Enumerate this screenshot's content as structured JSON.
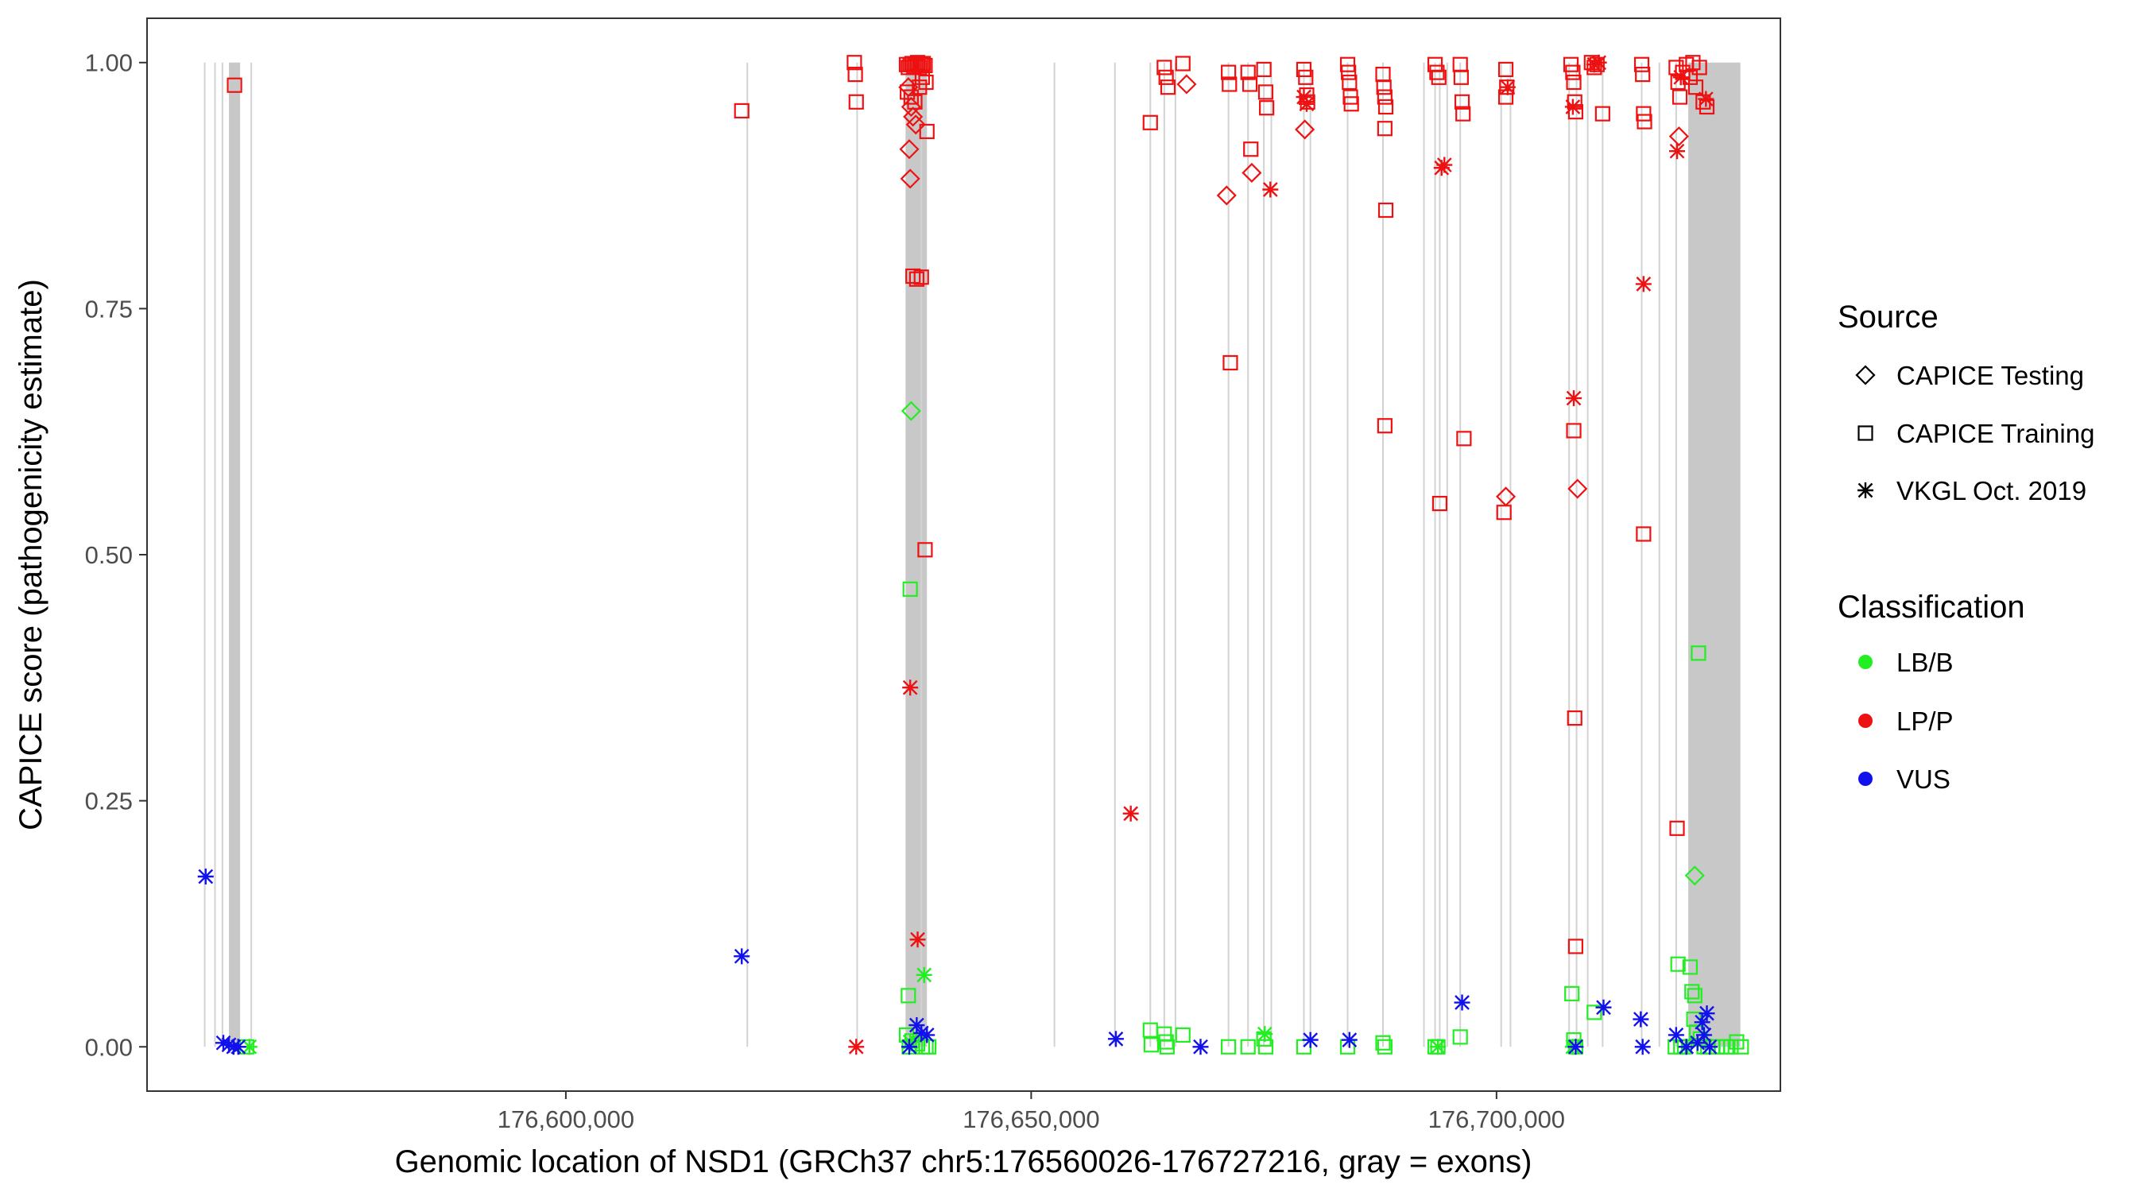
{
  "chart_data": {
    "type": "scatter",
    "title": "",
    "xlabel": "Genomic location of NSD1 (GRCh37 chr5:176560026-176727216, gray = exons)",
    "ylabel": "CAPICE score (pathogenicity estimate)",
    "xlim": [
      176555000,
      176730500
    ],
    "ylim": [
      -0.045,
      1.045
    ],
    "xticks": [
      176600000,
      176650000,
      176700000
    ],
    "xtick_labels": [
      "176,600,000",
      "176,650,000",
      "176,700,000"
    ],
    "yticks": [
      0,
      0.25,
      0.5,
      0.75,
      1
    ],
    "ytick_labels": [
      "0.00",
      "0.25",
      "0.50",
      "0.75",
      "1.00"
    ],
    "legend_position": "right",
    "legend": {
      "shape_title": "Source",
      "shapes": [
        {
          "label": "CAPICE Testing",
          "shape": "diamond"
        },
        {
          "label": "CAPICE Training",
          "shape": "square"
        },
        {
          "label": "VKGL Oct. 2019",
          "shape": "asterisk"
        }
      ],
      "color_title": "Classification",
      "colors": [
        {
          "label": "LB/B",
          "color": "#22ee22"
        },
        {
          "label": "LP/P",
          "color": "#ee1111"
        },
        {
          "label": "VUS",
          "color": "#1111ee"
        }
      ]
    },
    "exons": [
      [
        176563800,
        176565000
      ],
      [
        176636500,
        176638800
      ],
      [
        176720600,
        176726200
      ]
    ],
    "variant_lines": [
      176561200,
      176562300,
      176563100,
      176566200,
      176619500,
      176631300,
      176638200,
      176652500,
      176659000,
      176662800,
      176664300,
      176665500,
      176671200,
      176673300,
      176675000,
      176675800,
      176679300,
      176680000,
      176684000,
      176687800,
      176692200,
      176693400,
      176693900,
      176694700,
      176696100,
      176700500,
      176701500,
      176707800,
      176708600,
      176709800,
      176711400,
      176715600,
      176717500,
      176719300
    ],
    "series": [
      {
        "name": "CAPICE Training / LP/P",
        "shape": "square",
        "color": "#ee1111",
        "points": [
          [
            176564400,
            0.977
          ],
          [
            176618900,
            0.951
          ],
          [
            176631000,
            1.0
          ],
          [
            176631100,
            0.988
          ],
          [
            176631200,
            0.96
          ],
          [
            176636600,
            0.998
          ],
          [
            176636800,
            0.995
          ],
          [
            176637000,
            0.998
          ],
          [
            176637200,
            0.999
          ],
          [
            176637400,
            0.996
          ],
          [
            176637600,
            0.998
          ],
          [
            176637800,
            1.0
          ],
          [
            176638000,
            0.995
          ],
          [
            176638200,
            0.998
          ],
          [
            176638400,
            0.999
          ],
          [
            176638600,
            0.997
          ],
          [
            176636700,
            0.97
          ],
          [
            176637100,
            0.965
          ],
          [
            176637500,
            0.96
          ],
          [
            176638000,
            0.975
          ],
          [
            176638300,
            0.985
          ],
          [
            176638700,
            0.98
          ],
          [
            176638800,
            0.93
          ],
          [
            176637300,
            0.783
          ],
          [
            176637700,
            0.78
          ],
          [
            176638200,
            0.782
          ],
          [
            176638600,
            0.505
          ],
          [
            176662800,
            0.939
          ],
          [
            176664300,
            0.995
          ],
          [
            176664500,
            0.985
          ],
          [
            176664700,
            0.975
          ],
          [
            176666300,
            0.999
          ],
          [
            176671200,
            0.99
          ],
          [
            176671300,
            0.978
          ],
          [
            176671400,
            0.695
          ],
          [
            176673300,
            0.99
          ],
          [
            176673500,
            0.978
          ],
          [
            176673600,
            0.912
          ],
          [
            176675000,
            0.993
          ],
          [
            176675200,
            0.97
          ],
          [
            176675300,
            0.954
          ],
          [
            176679300,
            0.993
          ],
          [
            176679500,
            0.985
          ],
          [
            176679600,
            0.967
          ],
          [
            176679700,
            0.96
          ],
          [
            176684000,
            0.998
          ],
          [
            176684100,
            0.99
          ],
          [
            176684200,
            0.98
          ],
          [
            176684300,
            0.965
          ],
          [
            176684400,
            0.958
          ],
          [
            176687800,
            0.988
          ],
          [
            176687900,
            0.975
          ],
          [
            176688000,
            0.965
          ],
          [
            176688100,
            0.955
          ],
          [
            176688000,
            0.933
          ],
          [
            176688100,
            0.85
          ],
          [
            176688000,
            0.631
          ],
          [
            176693400,
            0.998
          ],
          [
            176693600,
            0.99
          ],
          [
            176693800,
            0.985
          ],
          [
            176693900,
            0.552
          ],
          [
            176696100,
            0.998
          ],
          [
            176696200,
            0.985
          ],
          [
            176696300,
            0.96
          ],
          [
            176696400,
            0.948
          ],
          [
            176696500,
            0.618
          ],
          [
            176701000,
            0.993
          ],
          [
            176701100,
            0.975
          ],
          [
            176701000,
            0.965
          ],
          [
            176700800,
            0.543
          ],
          [
            176708000,
            0.998
          ],
          [
            176708200,
            0.99
          ],
          [
            176708300,
            0.98
          ],
          [
            176708400,
            0.96
          ],
          [
            176708500,
            0.95
          ],
          [
            176708300,
            0.626
          ],
          [
            176708400,
            0.334
          ],
          [
            176708500,
            0.102
          ],
          [
            176710200,
            1.0
          ],
          [
            176710500,
            0.995
          ],
          [
            176710800,
            0.998
          ],
          [
            176711400,
            0.948
          ],
          [
            176715600,
            0.998
          ],
          [
            176715700,
            0.988
          ],
          [
            176715800,
            0.948
          ],
          [
            176715900,
            0.94
          ],
          [
            176715800,
            0.521
          ],
          [
            176719300,
            0.995
          ],
          [
            176719500,
            0.98
          ],
          [
            176719700,
            0.965
          ],
          [
            176720000,
            0.99
          ],
          [
            176720400,
            0.998
          ],
          [
            176720800,
            0.985
          ],
          [
            176721100,
            1.0
          ],
          [
            176721400,
            0.975
          ],
          [
            176721800,
            0.995
          ],
          [
            176722200,
            0.96
          ],
          [
            176722600,
            0.955
          ],
          [
            176719400,
            0.222
          ]
        ]
      },
      {
        "name": "CAPICE Training / LB/B",
        "shape": "square",
        "color": "#22ee22",
        "points": [
          [
            176565700,
            0.0
          ],
          [
            176637000,
            0.465
          ],
          [
            176636800,
            0.052
          ],
          [
            176636600,
            0.012
          ],
          [
            176637200,
            0.006
          ],
          [
            176637800,
            0.003
          ],
          [
            176638300,
            0.0
          ],
          [
            176638700,
            0.0
          ],
          [
            176639000,
            0.0
          ],
          [
            176636900,
            0.0
          ],
          [
            176662800,
            0.017
          ],
          [
            176662900,
            0.002
          ],
          [
            176664300,
            0.013
          ],
          [
            176664500,
            0.005
          ],
          [
            176664600,
            0.0
          ],
          [
            176666300,
            0.012
          ],
          [
            176671200,
            0.0
          ],
          [
            176673300,
            0.0
          ],
          [
            176675000,
            0.008
          ],
          [
            176675200,
            0.0
          ],
          [
            176679300,
            0.0
          ],
          [
            176684000,
            0.0
          ],
          [
            176687800,
            0.004
          ],
          [
            176688000,
            0.0
          ],
          [
            176693400,
            0.0
          ],
          [
            176693700,
            0.0
          ],
          [
            176696100,
            0.01
          ],
          [
            176708100,
            0.054
          ],
          [
            176708300,
            0.007
          ],
          [
            176708500,
            0.0
          ],
          [
            176710500,
            0.035
          ],
          [
            176719200,
            0.0
          ],
          [
            176719500,
            0.084
          ],
          [
            176720800,
            0.081
          ],
          [
            176721000,
            0.056
          ],
          [
            176721300,
            0.052
          ],
          [
            176721700,
            0.4
          ],
          [
            176721200,
            0.028
          ],
          [
            176721500,
            0.015
          ],
          [
            176721900,
            0.008
          ],
          [
            176722300,
            0.0
          ],
          [
            176722700,
            0.0
          ],
          [
            176723200,
            0.0
          ],
          [
            176723700,
            0.0
          ],
          [
            176724200,
            0.0
          ],
          [
            176724700,
            0.0
          ],
          [
            176725200,
            0.0
          ],
          [
            176725800,
            0.005
          ],
          [
            176726300,
            0.0
          ],
          [
            176720200,
            0.0
          ],
          [
            176719800,
            0.0
          ]
        ]
      },
      {
        "name": "CAPICE Testing / LP/P",
        "shape": "diamond",
        "color": "#ee1111",
        "points": [
          [
            176636800,
            0.975
          ],
          [
            176637100,
            0.955
          ],
          [
            176637300,
            0.945
          ],
          [
            176637600,
            0.937
          ],
          [
            176636900,
            0.912
          ],
          [
            176637000,
            0.882
          ],
          [
            176666700,
            0.978
          ],
          [
            176671000,
            0.865
          ],
          [
            176673700,
            0.888
          ],
          [
            176679400,
            0.932
          ],
          [
            176701000,
            0.559
          ],
          [
            176708700,
            0.567
          ],
          [
            176719600,
            0.925
          ]
        ]
      },
      {
        "name": "CAPICE Testing / LB/B",
        "shape": "diamond",
        "color": "#22ee22",
        "points": [
          [
            176637100,
            0.646
          ],
          [
            176721300,
            0.174
          ]
        ]
      },
      {
        "name": "VKGL Oct. 2019 / LP/P",
        "shape": "asterisk",
        "color": "#ee1111",
        "points": [
          [
            176631200,
            0.0
          ],
          [
            176637000,
            0.365
          ],
          [
            176637800,
            0.109
          ],
          [
            176660700,
            0.237
          ],
          [
            176675700,
            0.871
          ],
          [
            176679300,
            0.965
          ],
          [
            176679600,
            0.958
          ],
          [
            176694100,
            0.893
          ],
          [
            176694400,
            0.896
          ],
          [
            176701200,
            0.975
          ],
          [
            176708200,
            0.955
          ],
          [
            176708300,
            0.659
          ],
          [
            176710500,
            0.998
          ],
          [
            176711000,
            1.0
          ],
          [
            176715800,
            0.775
          ],
          [
            176719400,
            0.91
          ],
          [
            176719800,
            0.985
          ],
          [
            176722500,
            0.963
          ]
        ]
      },
      {
        "name": "VKGL Oct. 2019 / LB/B",
        "shape": "asterisk",
        "color": "#22ee22",
        "points": [
          [
            176566000,
            0.0
          ],
          [
            176637000,
            0.005
          ],
          [
            176638500,
            0.073
          ],
          [
            176675100,
            0.013
          ],
          [
            176693700,
            0.0
          ],
          [
            176708200,
            0.0
          ],
          [
            176720300,
            0.0
          ]
        ]
      },
      {
        "name": "VKGL Oct. 2019 / VUS",
        "shape": "asterisk",
        "color": "#1111ee",
        "points": [
          [
            176561300,
            0.173
          ],
          [
            176563200,
            0.004
          ],
          [
            176563800,
            0.002
          ],
          [
            176564300,
            0.0
          ],
          [
            176564800,
            0.0
          ],
          [
            176618900,
            0.092
          ],
          [
            176636900,
            0.0
          ],
          [
            176637700,
            0.022
          ],
          [
            176638200,
            0.014
          ],
          [
            176638800,
            0.012
          ],
          [
            176659100,
            0.008
          ],
          [
            176668200,
            0.0
          ],
          [
            176680000,
            0.007
          ],
          [
            176684200,
            0.007
          ],
          [
            176696300,
            0.045
          ],
          [
            176708500,
            0.0
          ],
          [
            176711500,
            0.04
          ],
          [
            176715500,
            0.028
          ],
          [
            176715700,
            0.0
          ],
          [
            176719300,
            0.012
          ],
          [
            176720400,
            0.0
          ],
          [
            176721600,
            0.004
          ],
          [
            176722100,
            0.025
          ],
          [
            176722300,
            0.012
          ],
          [
            176722600,
            0.034
          ],
          [
            176722900,
            0.0
          ]
        ]
      }
    ]
  }
}
